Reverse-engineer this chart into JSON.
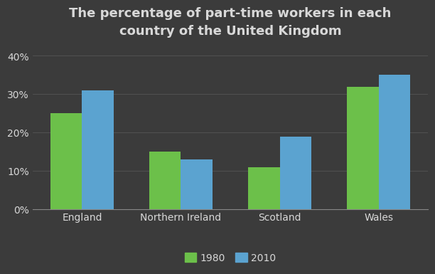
{
  "title": "The percentage of part-time workers in each\ncountry of the United Kingdom",
  "categories": [
    "England",
    "Northern Ireland",
    "Scotland",
    "Wales"
  ],
  "values_1980": [
    25,
    15,
    11,
    32
  ],
  "values_2010": [
    31,
    13,
    19,
    35
  ],
  "bar_color_1980": "#6cc04a",
  "bar_color_2010": "#5ba3d0",
  "background_color": "#3b3b3b",
  "text_color": "#d8d8d8",
  "grid_color": "#888888",
  "yticks": [
    0,
    10,
    20,
    30,
    40
  ],
  "ylim": [
    0,
    43
  ],
  "legend_labels": [
    "1980",
    "2010"
  ],
  "bar_width": 0.32,
  "title_fontsize": 13,
  "tick_fontsize": 10,
  "legend_fontsize": 10
}
